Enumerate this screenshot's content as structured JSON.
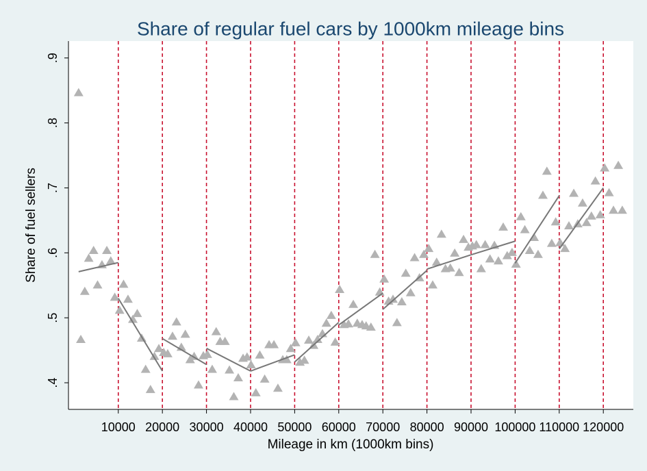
{
  "chart_data": {
    "type": "scatter",
    "title": "Share of regular fuel cars by 1000km mileage bins",
    "xlabel": "Mileage in km (1000km bins)",
    "ylabel": "Share of fuel sellers",
    "xlim": [
      -1300,
      126800
    ],
    "xticks": [
      10000,
      20000,
      30000,
      40000,
      50000,
      60000,
      70000,
      80000,
      90000,
      100000,
      110000,
      120000
    ],
    "ylim": [
      0.359,
      0.926
    ],
    "yticks": [
      {
        "value": 0.4,
        "label": ".4"
      },
      {
        "value": 0.5,
        "label": ".5"
      },
      {
        "value": 0.6,
        "label": ".6"
      },
      {
        "value": 0.7,
        "label": ".7"
      },
      {
        "value": 0.8,
        "label": ".8"
      },
      {
        "value": 0.9,
        "label": ".9"
      }
    ],
    "xline_color": "#c8102e",
    "series": [
      {
        "color": "#b3b3b3",
        "marker": "triangle",
        "x": [
          1000,
          1500,
          2400,
          3300,
          4400,
          5300,
          6300,
          7400,
          8300,
          9200,
          10300,
          11200,
          12200,
          13300,
          14300,
          15300,
          16200,
          17300,
          18200,
          19200,
          20300,
          21200,
          22300,
          23200,
          24300,
          25200,
          26300,
          27200,
          28200,
          29300,
          30200,
          31300,
          32200,
          33100,
          34200,
          35200,
          36200,
          37200,
          38300,
          39200,
          40100,
          41200,
          42100,
          43200,
          44200,
          45300,
          46200,
          47300,
          48200,
          49100,
          50200,
          51200,
          52200,
          53200,
          54300,
          55200,
          56300,
          57200,
          58300,
          59200,
          60200,
          61200,
          62200,
          63300,
          64200,
          65300,
          66200,
          67300,
          68200,
          69300,
          70300,
          71300,
          72300,
          73200,
          74300,
          75200,
          76300,
          77200,
          78300,
          79300,
          80400,
          81300,
          82200,
          83300,
          84200,
          85300,
          86300,
          87300,
          88300,
          89400,
          90300,
          91200,
          92300,
          93200,
          94300,
          95300,
          96200,
          97300,
          98200,
          99300,
          100200,
          101300,
          102200,
          103300,
          104300,
          105200,
          106300,
          107200,
          108300,
          109200,
          110200,
          111300,
          112200,
          113300,
          114200,
          115300,
          116200,
          117300,
          118200,
          119300,
          120300,
          121300,
          122300,
          123400,
          124300
        ],
        "values": [
          0.847,
          0.467,
          0.541,
          0.592,
          0.604,
          0.551,
          0.582,
          0.604,
          0.588,
          0.532,
          0.512,
          0.552,
          0.529,
          0.498,
          0.507,
          0.469,
          0.421,
          0.39,
          0.441,
          0.453,
          0.447,
          0.445,
          0.472,
          0.494,
          0.455,
          0.475,
          0.436,
          0.441,
          0.397,
          0.442,
          0.444,
          0.421,
          0.479,
          0.464,
          0.464,
          0.42,
          0.379,
          0.408,
          0.438,
          0.44,
          0.428,
          0.385,
          0.443,
          0.406,
          0.459,
          0.459,
          0.392,
          0.436,
          0.436,
          0.453,
          0.462,
          0.432,
          0.435,
          0.466,
          0.458,
          0.467,
          0.476,
          0.492,
          0.504,
          0.463,
          0.544,
          0.49,
          0.491,
          0.521,
          0.492,
          0.49,
          0.488,
          0.486,
          0.598,
          0.54,
          0.56,
          0.526,
          0.529,
          0.493,
          0.525,
          0.569,
          0.539,
          0.593,
          0.562,
          0.598,
          0.607,
          0.551,
          0.586,
          0.629,
          0.576,
          0.577,
          0.6,
          0.57,
          0.621,
          0.609,
          0.611,
          0.613,
          0.576,
          0.613,
          0.591,
          0.612,
          0.588,
          0.64,
          0.596,
          0.601,
          0.583,
          0.656,
          0.636,
          0.604,
          0.624,
          0.598,
          0.689,
          0.726,
          0.615,
          0.648,
          0.616,
          0.607,
          0.642,
          0.692,
          0.645,
          0.677,
          0.647,
          0.657,
          0.711,
          0.659,
          0.731,
          0.693,
          0.666,
          0.735,
          0.666
        ]
      }
    ],
    "fit_color": "#777777",
    "fits": [
      {
        "x": [
          1000,
          10000
        ],
        "values": [
          0.571,
          0.585
        ]
      },
      {
        "x": [
          10000,
          20000
        ],
        "values": [
          0.53,
          0.418
        ]
      },
      {
        "x": [
          20000,
          30000
        ],
        "values": [
          0.468,
          0.428
        ]
      },
      {
        "x": [
          30000,
          40000
        ],
        "values": [
          0.453,
          0.418
        ]
      },
      {
        "x": [
          40000,
          50000
        ],
        "values": [
          0.418,
          0.443
        ]
      },
      {
        "x": [
          50000,
          60000
        ],
        "values": [
          0.432,
          0.493
        ]
      },
      {
        "x": [
          60000,
          70000
        ],
        "values": [
          0.489,
          0.538
        ]
      },
      {
        "x": [
          70000,
          80000
        ],
        "values": [
          0.513,
          0.573
        ]
      },
      {
        "x": [
          80000,
          90000
        ],
        "values": [
          0.575,
          0.597
        ]
      },
      {
        "x": [
          90000,
          100000
        ],
        "values": [
          0.597,
          0.618
        ]
      },
      {
        "x": [
          100000,
          110000
        ],
        "values": [
          0.584,
          0.688
        ]
      },
      {
        "x": [
          110000,
          120000
        ],
        "values": [
          0.606,
          0.7
        ]
      }
    ]
  }
}
